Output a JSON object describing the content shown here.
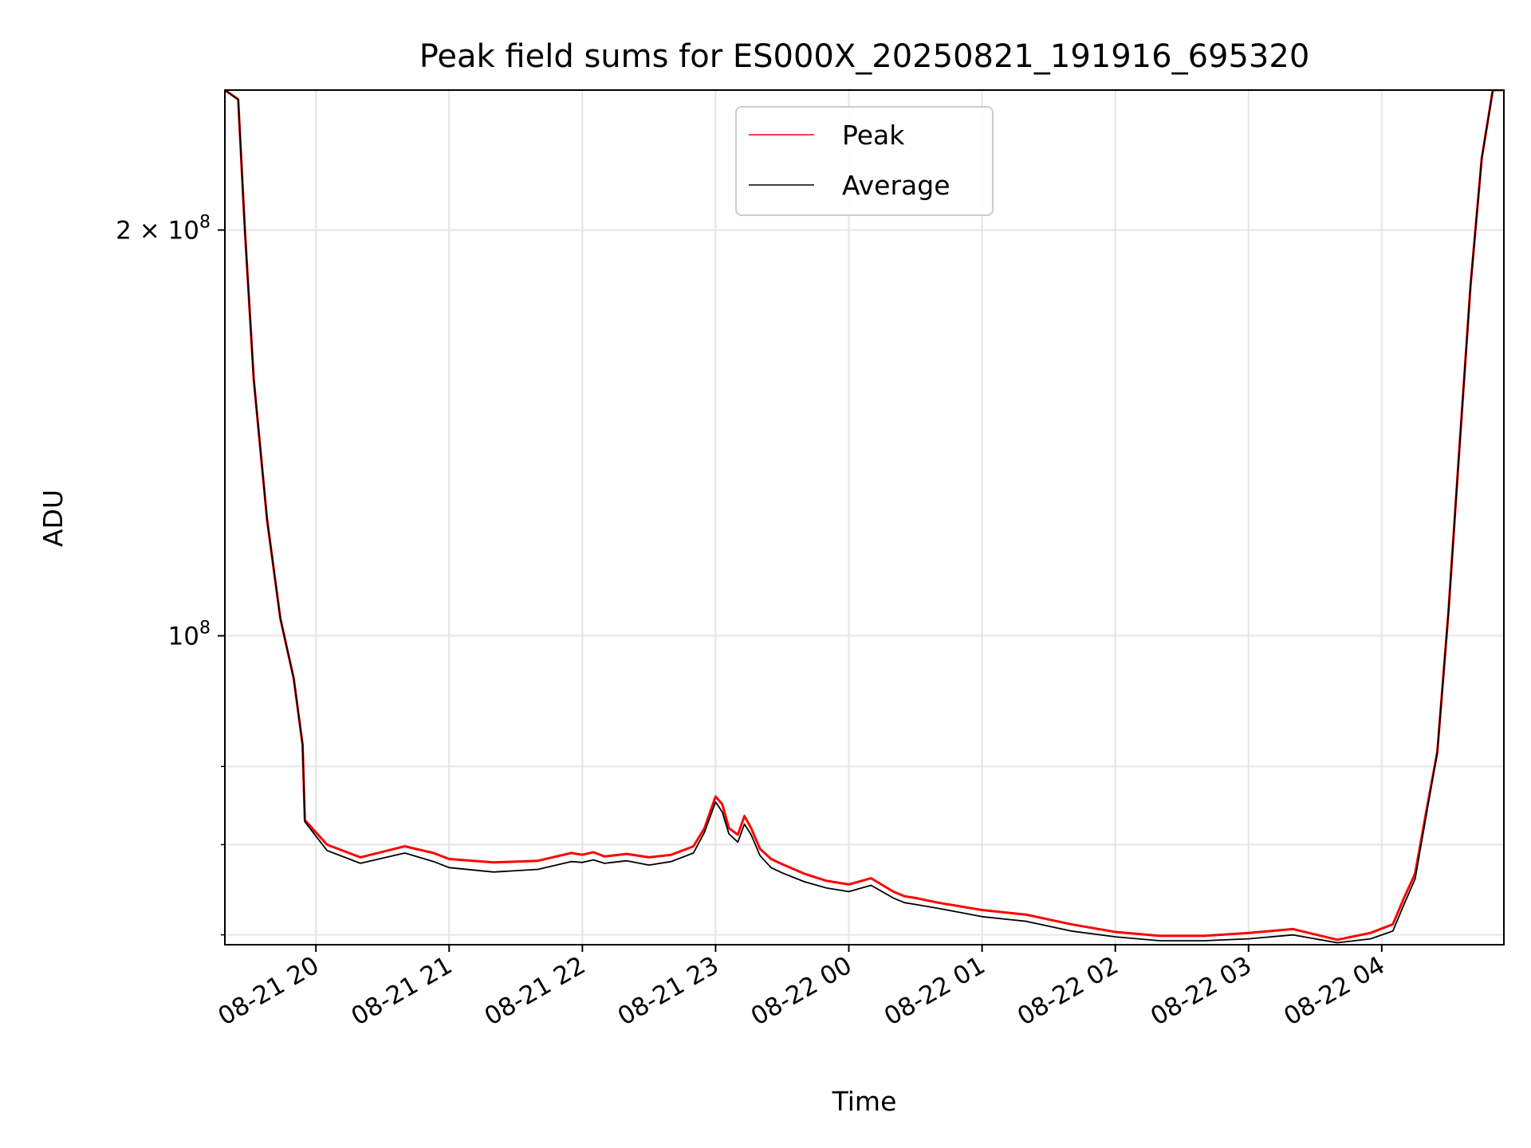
{
  "chart_data": {
    "type": "line",
    "title": "Peak field sums for ES000X_20250821_191916_695320",
    "xlabel": "Time",
    "ylabel": "ADU",
    "yscale": "log",
    "grid": true,
    "legend_position": "top-center",
    "x_ticks": [
      "08-21 20",
      "08-21 21",
      "08-21 22",
      "08-21 23",
      "08-22 00",
      "08-22 01",
      "08-22 02",
      "08-22 03",
      "08-22 04"
    ],
    "xlim": [
      "2025-08-21 19:19",
      "2025-08-22 04:55"
    ],
    "y_ticks": [
      {
        "value": 200000000,
        "label": "2 × 10^8",
        "mantissa": "2 × 10",
        "exp": "8"
      },
      {
        "value": 100000000,
        "label": "10^8",
        "mantissa": "10",
        "exp": "8"
      }
    ],
    "y_minor_ticks": [
      60000000,
      70000000,
      80000000
    ],
    "ylim": [
      59000000,
      254000000
    ],
    "series": [
      {
        "name": "Peak",
        "color": "#ff0000",
        "x": [
          "19:19",
          "19:25",
          "19:28",
          "19:32",
          "19:38",
          "19:44",
          "19:50",
          "19:54",
          "19:55",
          "20:05",
          "20:20",
          "20:40",
          "20:53",
          "21:00",
          "21:20",
          "21:40",
          "21:55",
          "22:00",
          "22:05",
          "22:10",
          "22:20",
          "22:30",
          "22:40",
          "22:50",
          "22:55",
          "23:00",
          "23:03",
          "23:06",
          "23:10",
          "23:13",
          "23:16",
          "23:20",
          "23:25",
          "23:30",
          "23:40",
          "23:50",
          "00:00",
          "00:10",
          "00:20",
          "00:25",
          "00:30",
          "00:40",
          "01:00",
          "01:20",
          "01:40",
          "02:00",
          "02:20",
          "02:40",
          "03:00",
          "03:20",
          "03:40",
          "03:55",
          "04:05",
          "04:10",
          "04:15",
          "04:20",
          "04:25",
          "04:30",
          "04:35",
          "04:40",
          "04:45",
          "04:50",
          "04:55"
        ],
        "y": [
          254000000,
          250000000,
          200000000,
          155000000,
          122000000,
          103000000,
          93000000,
          83000000,
          73000000,
          70000000,
          68500000,
          69800000,
          69000000,
          68300000,
          67900000,
          68100000,
          69000000,
          68800000,
          69100000,
          68600000,
          68900000,
          68500000,
          68800000,
          69800000,
          72000000,
          76000000,
          75000000,
          72000000,
          71200000,
          73500000,
          72000000,
          69500000,
          68300000,
          67700000,
          66600000,
          65800000,
          65400000,
          66100000,
          64600000,
          64100000,
          63900000,
          63400000,
          62600000,
          62100000,
          61100000,
          60300000,
          59900000,
          59900000,
          60200000,
          60600000,
          59500000,
          60200000,
          61100000,
          63900000,
          66600000,
          74000000,
          82000000,
          104000000,
          138000000,
          182000000,
          226000000,
          254000000,
          254000000
        ]
      },
      {
        "name": "Average",
        "color": "#000000",
        "x": [
          "19:19",
          "19:25",
          "19:28",
          "19:32",
          "19:38",
          "19:44",
          "19:50",
          "19:54",
          "19:55",
          "20:05",
          "20:20",
          "20:40",
          "20:53",
          "21:00",
          "21:20",
          "21:40",
          "21:55",
          "22:00",
          "22:05",
          "22:10",
          "22:20",
          "22:30",
          "22:40",
          "22:50",
          "22:55",
          "23:00",
          "23:03",
          "23:06",
          "23:10",
          "23:13",
          "23:16",
          "23:20",
          "23:25",
          "23:30",
          "23:40",
          "23:50",
          "00:00",
          "00:10",
          "00:20",
          "00:25",
          "00:30",
          "00:40",
          "01:00",
          "01:20",
          "01:40",
          "02:00",
          "02:20",
          "02:40",
          "03:00",
          "03:20",
          "03:40",
          "03:55",
          "04:05",
          "04:10",
          "04:15",
          "04:20",
          "04:25",
          "04:30",
          "04:35",
          "04:40",
          "04:45",
          "04:50",
          "04:55"
        ],
        "y": [
          254000000,
          250000000,
          200000000,
          155000000,
          122000000,
          103000000,
          93000000,
          83000000,
          72800000,
          69300000,
          67800000,
          69000000,
          68000000,
          67300000,
          66800000,
          67100000,
          68000000,
          67900000,
          68200000,
          67800000,
          68100000,
          67600000,
          68000000,
          69000000,
          71500000,
          75300000,
          74000000,
          71300000,
          70300000,
          72500000,
          71200000,
          68700000,
          67300000,
          66700000,
          65700000,
          65000000,
          64600000,
          65300000,
          63900000,
          63400000,
          63200000,
          62800000,
          61900000,
          61400000,
          60400000,
          59800000,
          59400000,
          59400000,
          59600000,
          60000000,
          59200000,
          59600000,
          60400000,
          63200000,
          66000000,
          73500000,
          82000000,
          104000000,
          138000000,
          182000000,
          226000000,
          254000000,
          254000000
        ]
      }
    ]
  }
}
